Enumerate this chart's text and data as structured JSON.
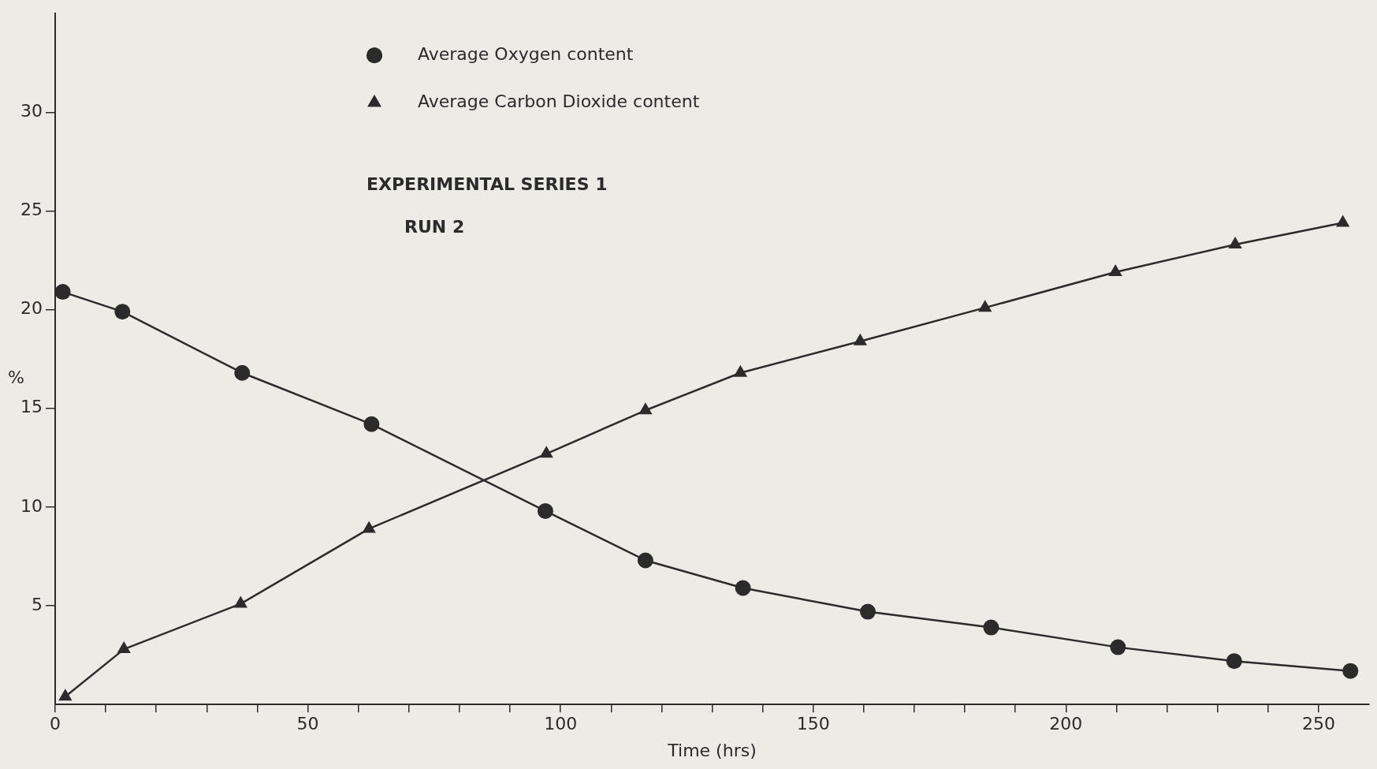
{
  "chart_data": {
    "type": "line",
    "xlabel": "Time (hrs)",
    "ylabel": "%",
    "annotations": [
      "EXPERIMENTAL SERIES 1",
      "RUN 2"
    ],
    "xlim": [
      0,
      260
    ],
    "ylim": [
      0,
      35
    ],
    "xticks": [
      0,
      {
        "value": 10,
        "label": null
      },
      {
        "value": 20,
        "label": null
      },
      {
        "value": 30,
        "label": null
      },
      {
        "value": 40,
        "label": null
      },
      50,
      {
        "value": 60,
        "label": null
      },
      {
        "value": 70,
        "label": null
      },
      {
        "value": 80,
        "label": null
      },
      {
        "value": 90,
        "label": null
      },
      100,
      {
        "value": 110,
        "label": null
      },
      {
        "value": 120,
        "label": null
      },
      {
        "value": 130,
        "label": null
      },
      {
        "value": 140,
        "label": null
      },
      150,
      {
        "value": 160,
        "label": null
      },
      {
        "value": 170,
        "label": null
      },
      {
        "value": 180,
        "label": null
      },
      {
        "value": 190,
        "label": null
      },
      200,
      {
        "value": 210,
        "label": null
      },
      {
        "value": 220,
        "label": null
      },
      {
        "value": 230,
        "label": null
      },
      {
        "value": 240,
        "label": null
      },
      250
    ],
    "yticks": [
      5,
      10,
      15,
      20,
      25,
      30
    ],
    "grid": false,
    "legend": "top left",
    "line_style": "solid",
    "series": [
      {
        "name": "Average Oxygen content",
        "color": "#2b2b2b",
        "marker": "circle",
        "x": [
          1.5,
          13.3,
          37,
          62.6,
          97,
          116.8,
          136.1,
          160.8,
          185.2,
          210.3,
          233.3,
          256.3
        ],
        "values": [
          20.9,
          19.9,
          16.8,
          14.2,
          9.8,
          7.3,
          5.9,
          4.7,
          3.9,
          2.9,
          2.2,
          1.7
        ]
      },
      {
        "name": "Average Carbon Dioxide content",
        "color": "#2b2b2b",
        "marker": "triangle",
        "x": [
          2,
          13.6,
          36.7,
          62.1,
          97.2,
          116.8,
          135.6,
          159.3,
          184,
          209.8,
          233.5,
          254.8
        ],
        "values": [
          0.4,
          2.8,
          5.1,
          8.9,
          12.7,
          14.9,
          16.8,
          18.4,
          20.1,
          21.9,
          23.3,
          24.4
        ]
      }
    ]
  }
}
